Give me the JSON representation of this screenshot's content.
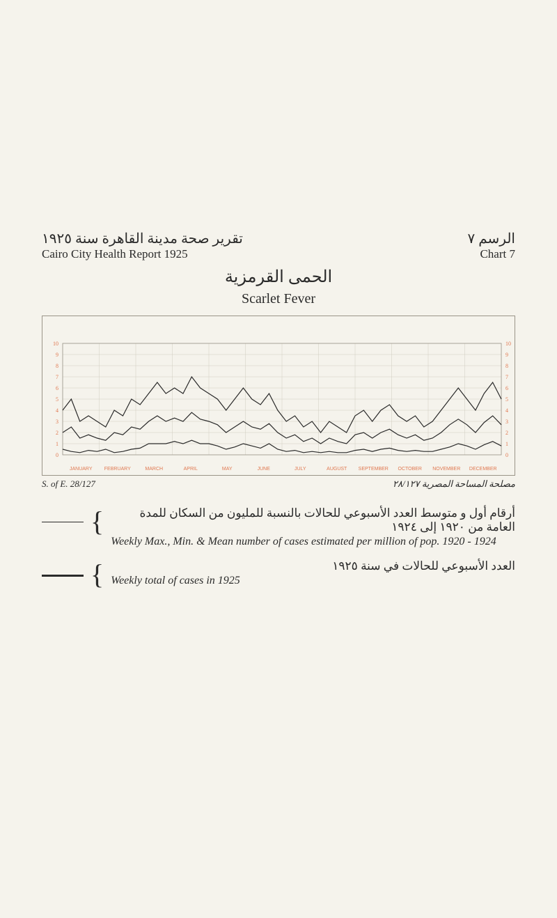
{
  "header": {
    "left_ar": "تقرير صحة مدينة القاهرة سنة ١٩٢٥",
    "left_en": "Cairo City Health Report 1925",
    "right_ar": "الرسم ٧",
    "right_en": "Chart 7"
  },
  "title": {
    "ar": "الحمى القرمزية",
    "en": "Scarlet Fever"
  },
  "chart": {
    "type": "line",
    "background_color": "#f5f3ec",
    "border_color": "#9a9488",
    "grid_color": "#d0ccc0",
    "y_scale_color": "#e07850",
    "x_scale_color": "#e07850",
    "y_min": 0,
    "y_max": 10,
    "y_ticks": [
      0,
      1,
      2,
      3,
      4,
      5,
      6,
      7,
      8,
      9,
      10
    ],
    "x_weeks": 52,
    "months_en": [
      "JANUARY",
      "FEBRUARY",
      "MARCH",
      "APRIL",
      "MAY",
      "JUNE",
      "JULY",
      "AUGUST",
      "SEPTEMBER",
      "OCTOBER",
      "NOVEMBER",
      "DECEMBER"
    ],
    "series_1924": {
      "color": "#2a2a2a",
      "width": 1.2,
      "max": [
        4.0,
        5.0,
        3.0,
        3.5,
        3.0,
        2.5,
        4.0,
        3.5,
        5.0,
        4.5,
        5.5,
        6.5,
        5.5,
        6.0,
        5.5,
        7.0,
        6.0,
        5.5,
        5.0,
        4.0,
        5.0,
        6.0,
        5.0,
        4.5,
        5.5,
        4.0,
        3.0,
        3.5,
        2.5,
        3.0,
        2.0,
        3.0,
        2.5,
        2.0,
        3.5,
        4.0,
        3.0,
        4.0,
        4.5,
        3.5,
        3.0,
        3.5,
        2.5,
        3.0,
        4.0,
        5.0,
        6.0,
        5.0,
        4.0,
        5.5,
        6.5,
        5.0
      ],
      "min": [
        0.5,
        0.3,
        0.2,
        0.4,
        0.3,
        0.5,
        0.2,
        0.3,
        0.5,
        0.6,
        1.0,
        1.0,
        1.0,
        1.2,
        1.0,
        1.3,
        1.0,
        1.0,
        0.8,
        0.5,
        0.7,
        1.0,
        0.8,
        0.6,
        1.0,
        0.5,
        0.3,
        0.4,
        0.2,
        0.3,
        0.2,
        0.3,
        0.2,
        0.2,
        0.4,
        0.5,
        0.3,
        0.5,
        0.6,
        0.4,
        0.3,
        0.4,
        0.3,
        0.3,
        0.5,
        0.7,
        1.0,
        0.8,
        0.5,
        0.9,
        1.2,
        0.8
      ],
      "mean": [
        2.0,
        2.5,
        1.5,
        1.8,
        1.5,
        1.3,
        2.0,
        1.8,
        2.5,
        2.3,
        3.0,
        3.5,
        3.0,
        3.3,
        3.0,
        3.8,
        3.2,
        3.0,
        2.7,
        2.0,
        2.5,
        3.0,
        2.5,
        2.3,
        2.8,
        2.0,
        1.5,
        1.8,
        1.2,
        1.5,
        1.0,
        1.5,
        1.2,
        1.0,
        1.8,
        2.0,
        1.5,
        2.0,
        2.3,
        1.8,
        1.5,
        1.8,
        1.3,
        1.5,
        2.0,
        2.7,
        3.2,
        2.7,
        2.0,
        2.9,
        3.5,
        2.7
      ]
    }
  },
  "footer": {
    "left": "S. of E. 28/127",
    "right_ar": "مصلحة المساحة المصرية ٢٨/١٢٧"
  },
  "legend": {
    "item1": {
      "ar": "أرقام أول و متوسط العدد الأسبوعي للحالات بالنسبة للمليون من السكان للمدة العامة من ١٩٢٠ إلى ١٩٢٤",
      "en": "Weekly Max., Min. & Mean number of cases estimated per million of pop. 1920 - 1924",
      "line_style": "thin"
    },
    "item2": {
      "ar": "العدد الأسبوعي للحالات في سنة ١٩٢٥",
      "en": "Weekly total of cases in 1925",
      "line_style": "thick"
    }
  }
}
